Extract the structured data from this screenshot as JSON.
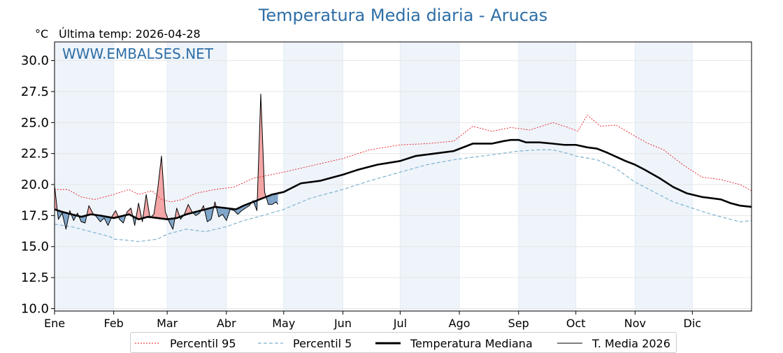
{
  "chart_data": {
    "type": "line",
    "title": "Temperatura Media diaria - Arucas",
    "unit_label": "°C",
    "last_temp_label": "Última temp: 2026-04-28",
    "watermark": "WWW.EMBALSES.NET",
    "xlabel": "",
    "ylabel": "",
    "ylim": [
      9.8,
      31.5
    ],
    "xlim": [
      1,
      366
    ],
    "yticks": [
      "10.0",
      "12.5",
      "15.0",
      "17.5",
      "20.0",
      "22.5",
      "25.0",
      "27.5",
      "30.0"
    ],
    "months": [
      "Ene",
      "Feb",
      "Mar",
      "Abr",
      "May",
      "Jun",
      "Jul",
      "Ago",
      "Sep",
      "Oct",
      "Nov",
      "Dic"
    ],
    "month_start_days": [
      1,
      32,
      60,
      91,
      121,
      152,
      182,
      213,
      244,
      274,
      305,
      335
    ],
    "grid": true,
    "legend_position": "bottom-center",
    "colors": {
      "p95": "#e8191f",
      "p5": "#7fb2cf",
      "median": "#000000",
      "current": "#000000",
      "above_fill": "#f4a6a6",
      "below_fill": "#7fa5c9",
      "band": "#eef4fa",
      "title": "#2e6ea6"
    },
    "series": [
      {
        "name": "Percentil 95",
        "style": "dotted",
        "x": [
          1,
          8,
          15,
          22,
          32,
          40,
          45,
          52,
          57,
          62,
          68,
          75,
          85,
          95,
          105,
          121,
          135,
          152,
          166,
          182,
          196,
          210,
          220,
          230,
          240,
          250,
          258,
          262,
          270,
          275,
          280,
          287,
          295,
          305,
          312,
          320,
          330,
          340,
          350,
          360,
          366
        ],
        "values": [
          19.6,
          19.6,
          19.0,
          18.8,
          19.2,
          19.6,
          19.2,
          19.5,
          18.8,
          18.6,
          18.8,
          19.3,
          19.6,
          19.8,
          20.5,
          21.0,
          21.5,
          22.1,
          22.8,
          23.2,
          23.3,
          23.5,
          24.7,
          24.3,
          24.6,
          24.4,
          24.8,
          25.0,
          24.6,
          24.3,
          25.6,
          24.7,
          24.8,
          23.9,
          23.3,
          22.8,
          21.6,
          20.6,
          20.4,
          20.0,
          19.5
        ]
      },
      {
        "name": "Percentil 5",
        "style": "dashed",
        "x": [
          1,
          10,
          20,
          30,
          32,
          40,
          45,
          50,
          55,
          60,
          70,
          80,
          91,
          100,
          110,
          121,
          135,
          152,
          166,
          182,
          196,
          210,
          220,
          230,
          244,
          255,
          262,
          270,
          274,
          285,
          295,
          305,
          315,
          325,
          335,
          345,
          350,
          355,
          360,
          366
        ],
        "values": [
          16.8,
          16.6,
          16.2,
          15.8,
          15.6,
          15.5,
          15.4,
          15.5,
          15.6,
          16.0,
          16.4,
          16.2,
          16.6,
          17.1,
          17.5,
          18.0,
          18.9,
          19.6,
          20.3,
          21.0,
          21.6,
          22.0,
          22.2,
          22.4,
          22.7,
          22.8,
          22.8,
          22.5,
          22.3,
          22.0,
          21.3,
          20.2,
          19.4,
          18.6,
          18.1,
          17.6,
          17.4,
          17.2,
          17.0,
          17.1
        ]
      },
      {
        "name": "Temperatura Mediana",
        "style": "solid-thick",
        "x": [
          1,
          5,
          10,
          15,
          20,
          25,
          32,
          40,
          45,
          50,
          55,
          60,
          65,
          70,
          75,
          80,
          85,
          91,
          96,
          100,
          105,
          110,
          115,
          121,
          130,
          140,
          152,
          160,
          170,
          182,
          190,
          200,
          210,
          220,
          230,
          236,
          240,
          244,
          248,
          255,
          262,
          268,
          274,
          280,
          285,
          290,
          300,
          305,
          310,
          318,
          325,
          332,
          340,
          350,
          355,
          360,
          366
        ],
        "values": [
          18.0,
          17.8,
          17.6,
          17.4,
          17.6,
          17.5,
          17.3,
          17.6,
          17.2,
          17.4,
          17.3,
          17.2,
          17.3,
          17.6,
          17.8,
          18.0,
          18.2,
          18.1,
          18.0,
          18.3,
          18.6,
          18.9,
          19.2,
          19.4,
          20.1,
          20.3,
          20.8,
          21.2,
          21.6,
          21.9,
          22.3,
          22.5,
          22.7,
          23.3,
          23.3,
          23.5,
          23.6,
          23.6,
          23.4,
          23.4,
          23.3,
          23.2,
          23.2,
          23.0,
          22.9,
          22.6,
          21.9,
          21.6,
          21.2,
          20.5,
          19.8,
          19.3,
          19.0,
          18.8,
          18.5,
          18.3,
          18.2
        ]
      },
      {
        "name": "T. Media 2026",
        "style": "solid-thin",
        "x": [
          1,
          3,
          5,
          7,
          9,
          11,
          13,
          15,
          17,
          19,
          21,
          23,
          25,
          27,
          29,
          31,
          33,
          35,
          37,
          39,
          41,
          43,
          45,
          47,
          49,
          51,
          53,
          55,
          57,
          59,
          61,
          63,
          65,
          67,
          69,
          71,
          73,
          75,
          77,
          79,
          81,
          83,
          85,
          87,
          89,
          91,
          93,
          95,
          97,
          99,
          101,
          103,
          105,
          107,
          109,
          111,
          113,
          115,
          117,
          118
        ],
        "values": [
          19.9,
          17.2,
          17.7,
          16.4,
          17.9,
          17.1,
          17.7,
          17.0,
          16.9,
          18.3,
          17.7,
          17.4,
          17.0,
          17.3,
          16.7,
          17.4,
          17.9,
          17.2,
          16.9,
          17.8,
          18.1,
          16.7,
          18.5,
          17.0,
          19.2,
          17.3,
          17.6,
          19.6,
          22.3,
          17.8,
          17.0,
          16.4,
          18.1,
          17.2,
          17.6,
          18.4,
          17.8,
          17.5,
          17.7,
          18.3,
          17.0,
          17.2,
          18.6,
          17.4,
          17.6,
          17.1,
          18.0,
          17.9,
          17.6,
          17.9,
          18.1,
          18.3,
          18.7,
          17.9,
          27.3,
          19.4,
          18.4,
          18.4,
          18.6,
          18.4
        ]
      }
    ]
  }
}
